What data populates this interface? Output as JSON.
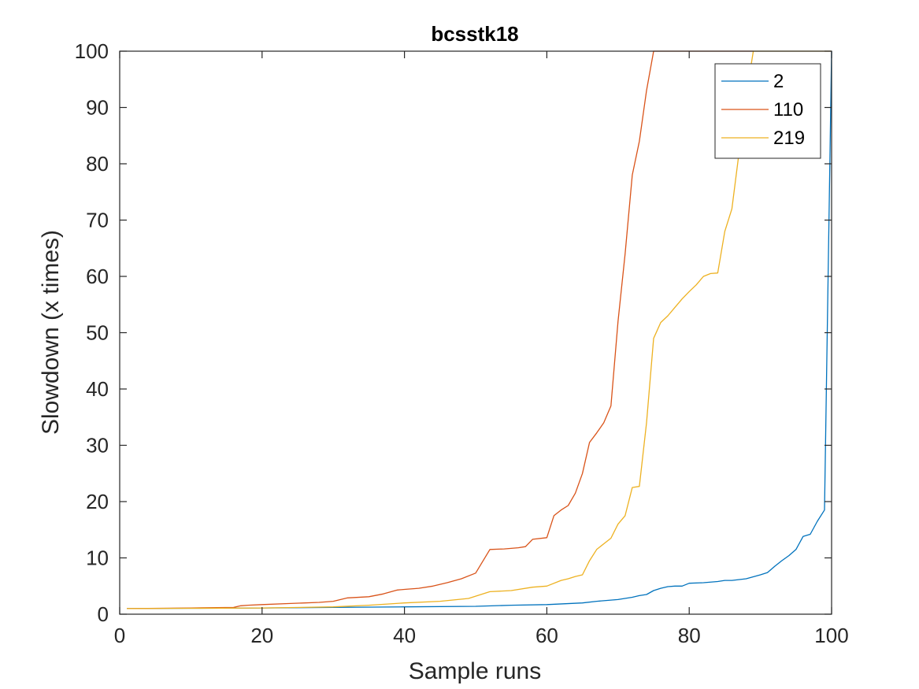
{
  "chart_data": {
    "type": "line",
    "title": "bcsstk18",
    "xlabel": "Sample runs",
    "ylabel": "Slowdown (x times)",
    "xlim": [
      0,
      100
    ],
    "ylim": [
      0,
      100
    ],
    "xticks": [
      0,
      20,
      40,
      60,
      80,
      100
    ],
    "yticks": [
      0,
      10,
      20,
      30,
      40,
      50,
      60,
      70,
      80,
      90,
      100
    ],
    "grid": false,
    "legend_position": "top-right",
    "series": [
      {
        "name": "2",
        "color": "#0072BD",
        "x": [
          1,
          10,
          20,
          30,
          40,
          50,
          55,
          60,
          65,
          67,
          70,
          72,
          73,
          74,
          75,
          76,
          77,
          78,
          79,
          80,
          82,
          84,
          85,
          86,
          88,
          90,
          91,
          92,
          93,
          94,
          95,
          96,
          97,
          98,
          99,
          100
        ],
        "y": [
          1,
          1.05,
          1.1,
          1.2,
          1.3,
          1.4,
          1.6,
          1.7,
          2.0,
          2.3,
          2.6,
          3.0,
          3.3,
          3.5,
          4.2,
          4.6,
          4.9,
          5.0,
          5.0,
          5.5,
          5.6,
          5.8,
          6.0,
          6.0,
          6.3,
          7.0,
          7.4,
          8.5,
          9.5,
          10.4,
          11.5,
          13.8,
          14.2,
          16.5,
          18.5,
          100
        ]
      },
      {
        "name": "110",
        "color": "#D95319",
        "x": [
          1,
          10,
          16,
          17,
          18,
          20,
          24,
          28,
          30,
          32,
          35,
          37,
          39,
          40,
          42,
          44,
          46,
          48,
          50,
          52,
          54,
          56,
          57,
          58,
          60,
          61,
          62,
          63,
          64,
          65,
          66,
          67,
          68,
          69,
          70,
          71,
          72,
          73,
          74,
          75,
          89
        ],
        "y": [
          1,
          1.1,
          1.2,
          1.5,
          1.6,
          1.7,
          1.9,
          2.1,
          2.3,
          2.9,
          3.1,
          3.6,
          4.3,
          4.4,
          4.6,
          5.0,
          5.6,
          6.3,
          7.3,
          11.5,
          11.6,
          11.8,
          12.0,
          13.3,
          13.6,
          17.5,
          18.5,
          19.3,
          21.5,
          25.0,
          30.5,
          32.2,
          34.0,
          37.0,
          52.0,
          64.0,
          78.0,
          84.0,
          93.0,
          100,
          100
        ]
      },
      {
        "name": "219",
        "color": "#EDB120",
        "x": [
          1,
          10,
          20,
          30,
          35,
          40,
          45,
          49,
          50,
          52,
          55,
          58,
          60,
          62,
          63,
          64,
          65,
          66,
          67,
          68,
          69,
          70,
          71,
          72,
          73,
          74,
          75,
          76,
          77,
          78,
          79,
          80,
          81,
          82,
          83,
          84,
          85,
          86,
          87,
          88,
          89,
          100
        ],
        "y": [
          1,
          1.05,
          1.1,
          1.3,
          1.6,
          2.0,
          2.3,
          2.8,
          3.2,
          4.0,
          4.2,
          4.8,
          5.0,
          6.0,
          6.3,
          6.7,
          7.0,
          9.5,
          11.5,
          12.5,
          13.5,
          16.0,
          17.5,
          22.5,
          22.7,
          34.0,
          49.0,
          51.8,
          53.0,
          54.5,
          56.0,
          57.3,
          58.5,
          60.0,
          60.5,
          60.6,
          68.0,
          72.0,
          82.0,
          92.0,
          100,
          100
        ]
      }
    ]
  }
}
